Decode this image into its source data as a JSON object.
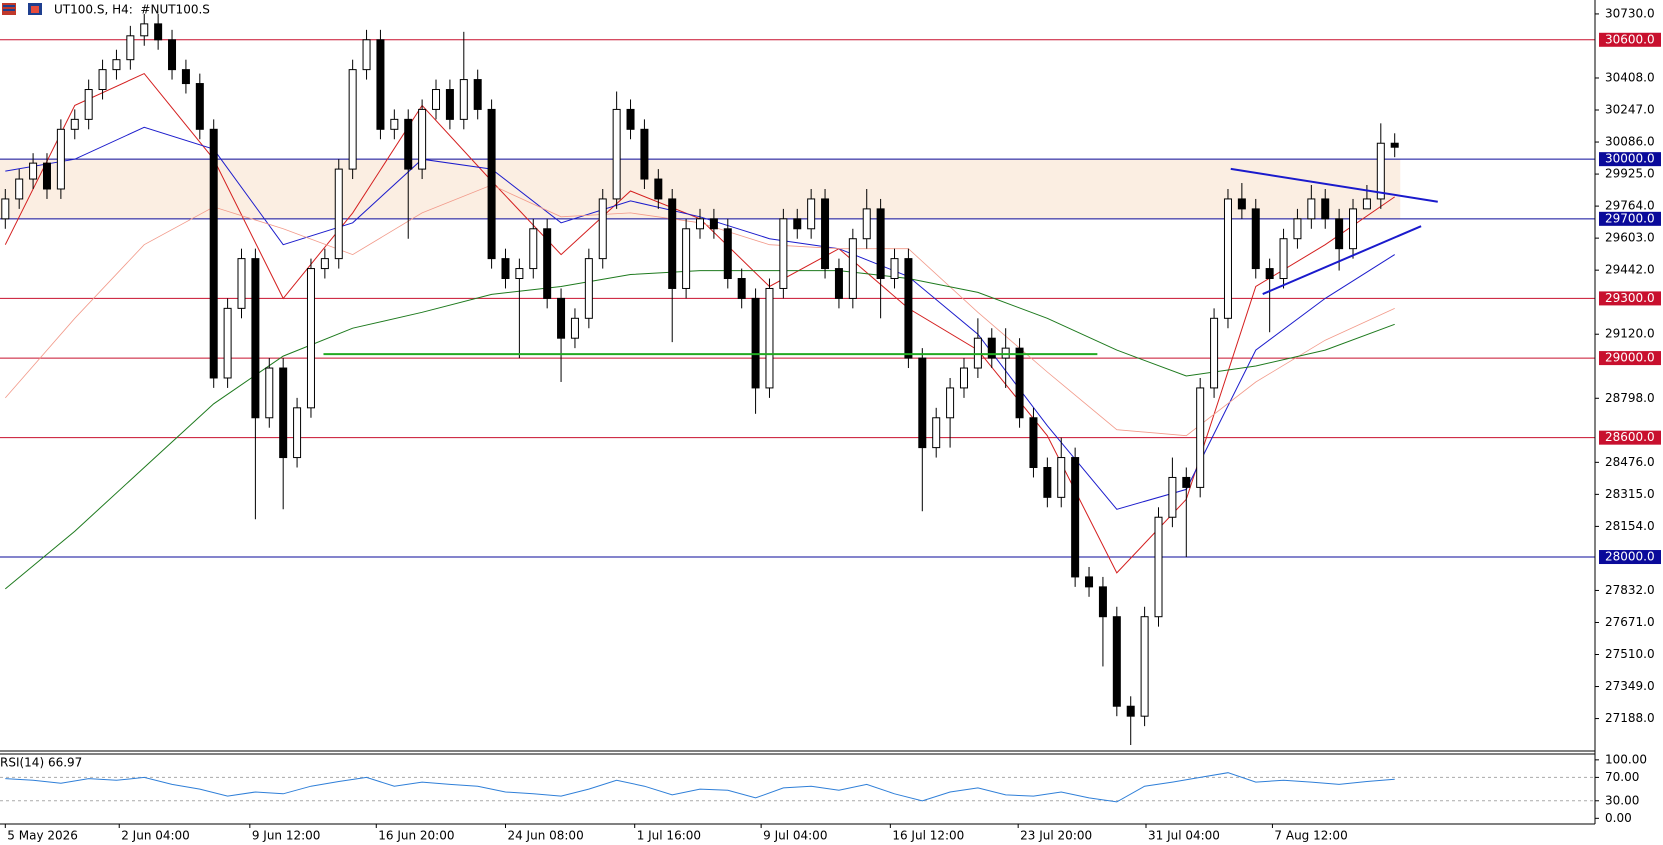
{
  "chart_data": {
    "type": "candlestick",
    "title": "UT100.S, H4:  #NUT100.S",
    "up_color": "#ffffff",
    "down_color": "#000000",
    "wick_color": "#000000",
    "grid": false,
    "open": [
      29700,
      29800,
      29900,
      29980,
      29850,
      30150,
      30200,
      30350,
      30450,
      30500,
      30620,
      30680,
      30600,
      30450,
      30380,
      30150,
      28900,
      29250,
      29500,
      28700,
      28950,
      28500,
      28750,
      29450,
      29500,
      29950,
      30450,
      30600,
      30150,
      30200,
      29950,
      30250,
      30350,
      30200,
      30400,
      30250,
      29500,
      29400,
      29450,
      29650,
      29300,
      29100,
      29200,
      29500,
      29800,
      30250,
      30150,
      29900,
      29800,
      29350,
      29650,
      29700,
      29650,
      29400,
      29300,
      28850,
      29350,
      29700,
      29650,
      29800,
      29450,
      29300,
      29600,
      29750,
      29400,
      29500,
      29000,
      28550,
      28700,
      28850,
      28950,
      29100,
      29000,
      29050,
      28700,
      28450,
      28300,
      28500,
      27900,
      27850,
      27700,
      27250,
      27200,
      27700,
      28200,
      28400,
      28350,
      28850,
      29200,
      29800,
      29750,
      29450,
      29400,
      29600,
      29700,
      29800,
      29700,
      29550,
      29750,
      29800,
      30080
    ],
    "high": [
      29850,
      29950,
      30030,
      30030,
      30200,
      30250,
      30400,
      30500,
      30550,
      30670,
      30730,
      30730,
      30650,
      30500,
      30430,
      30200,
      29300,
      29550,
      29550,
      29000,
      29000,
      28800,
      29500,
      29550,
      30000,
      30500,
      30650,
      30650,
      30250,
      30250,
      30300,
      30400,
      30400,
      30640,
      30450,
      30300,
      29550,
      29500,
      29700,
      29700,
      29350,
      29250,
      29550,
      29850,
      30340,
      30300,
      30200,
      29950,
      29850,
      29700,
      29750,
      29750,
      29700,
      29450,
      29350,
      29400,
      29750,
      29750,
      29850,
      29850,
      29500,
      29650,
      29850,
      29800,
      29550,
      29550,
      29050,
      28750,
      28900,
      29000,
      29200,
      29150,
      29150,
      29100,
      28750,
      28500,
      28600,
      28550,
      27950,
      27900,
      27750,
      27300,
      27750,
      28250,
      28500,
      28450,
      28900,
      29250,
      29850,
      29880,
      29800,
      29500,
      29650,
      29750,
      29870,
      29850,
      29750,
      29800,
      29870,
      30180,
      30130
    ],
    "low": [
      29650,
      29750,
      29850,
      29800,
      29800,
      30100,
      30150,
      30300,
      30400,
      30450,
      30570,
      30550,
      30400,
      30330,
      30100,
      28850,
      28850,
      29200,
      28190,
      28650,
      28240,
      28450,
      28700,
      29400,
      29450,
      29900,
      30400,
      30100,
      30100,
      29600,
      29900,
      30200,
      30150,
      30150,
      30200,
      29450,
      29350,
      29000,
      29400,
      29250,
      28880,
      29050,
      29150,
      29450,
      29750,
      30100,
      29850,
      29750,
      29080,
      29300,
      29600,
      29600,
      29350,
      29250,
      28720,
      28800,
      29300,
      29600,
      29600,
      29400,
      29250,
      29250,
      29550,
      29200,
      29350,
      28950,
      28230,
      28500,
      28550,
      28800,
      28900,
      28950,
      28850,
      28650,
      28400,
      28250,
      28250,
      27850,
      27800,
      27450,
      27200,
      27055,
      27150,
      27650,
      28150,
      28000,
      28300,
      28800,
      29150,
      29700,
      29400,
      29130,
      29350,
      29550,
      29650,
      29650,
      29440,
      29500,
      29750,
      29750,
      30010
    ],
    "close": [
      29800,
      29900,
      29980,
      29850,
      30150,
      30200,
      30350,
      30450,
      30500,
      30620,
      30680,
      30600,
      30450,
      30380,
      30150,
      28900,
      29250,
      29500,
      28700,
      28950,
      28500,
      28750,
      29450,
      29500,
      29950,
      30450,
      30600,
      30150,
      30200,
      29950,
      30250,
      30350,
      30200,
      30400,
      30250,
      29500,
      29400,
      29450,
      29650,
      29300,
      29100,
      29200,
      29500,
      29800,
      30250,
      30150,
      29900,
      29800,
      29350,
      29650,
      29700,
      29650,
      29400,
      29300,
      28850,
      29350,
      29700,
      29650,
      29800,
      29450,
      29300,
      29600,
      29750,
      29400,
      29500,
      29000,
      28550,
      28700,
      28850,
      28950,
      29100,
      29000,
      29050,
      28700,
      28450,
      28300,
      28500,
      27900,
      27850,
      27700,
      27250,
      27200,
      27700,
      28200,
      28400,
      28350,
      28850,
      29200,
      29800,
      29750,
      29450,
      29400,
      29600,
      29700,
      29800,
      29700,
      29550,
      29750,
      29800,
      30080,
      30060
    ],
    "ylim": [
      27030,
      30800
    ],
    "yticks": [
      {
        "value": 30730,
        "label": "30730.0"
      },
      {
        "value": 30408,
        "label": "30408.0"
      },
      {
        "value": 30247,
        "label": "30247.0"
      },
      {
        "value": 30086,
        "label": "30086.0"
      },
      {
        "value": 29925,
        "label": "29925.0"
      },
      {
        "value": 29764,
        "label": "29764.0"
      },
      {
        "value": 29603,
        "label": "29603.0"
      },
      {
        "value": 29442,
        "label": "29442.0"
      },
      {
        "value": 29120,
        "label": "29120.0"
      },
      {
        "value": 28798,
        "label": "28798.0"
      },
      {
        "value": 28476,
        "label": "28476.0"
      },
      {
        "value": 28315,
        "label": "28315.0"
      },
      {
        "value": 28154,
        "label": "28154.0"
      },
      {
        "value": 27832,
        "label": "27832.0"
      },
      {
        "value": 27671,
        "label": "27671.0"
      },
      {
        "value": 27510,
        "label": "27510.0"
      },
      {
        "value": 27349,
        "label": "27349.0"
      },
      {
        "value": 27188,
        "label": "27188.0"
      }
    ],
    "xticks": [
      {
        "value": 0,
        "label": "5 May 2026"
      },
      {
        "value": 8.2,
        "label": "2 Jun 04:00"
      },
      {
        "value": 17.6,
        "label": "9 Jun 12:00"
      },
      {
        "value": 26.7,
        "label": "16 Jun 20:00"
      },
      {
        "value": 36,
        "label": "24 Jun 08:00"
      },
      {
        "value": 45.3,
        "label": "1 Jul 16:00"
      },
      {
        "value": 54.4,
        "label": "9 Jul 04:00"
      },
      {
        "value": 63.7,
        "label": "16 Jul 12:00"
      },
      {
        "value": 72.9,
        "label": "23 Jul 20:00"
      },
      {
        "value": 82.1,
        "label": "31 Jul 04:00"
      },
      {
        "value": 91.2,
        "label": "7 Aug 12:00"
      }
    ],
    "levels": [
      {
        "value": 30600,
        "label": "30600.0",
        "color": "#c8102e"
      },
      {
        "value": 30000,
        "label": "30000.0",
        "color": "#0a0a9a"
      },
      {
        "value": 29700,
        "label": "29700.0",
        "color": "#0a0a9a"
      },
      {
        "value": 29300,
        "label": "29300.0",
        "color": "#c8102e"
      },
      {
        "value": 29000,
        "label": "29000.0",
        "color": "#c8102e"
      },
      {
        "value": 28600,
        "label": "28600.0",
        "color": "#c8102e"
      },
      {
        "value": 28000,
        "label": "28000.0",
        "color": "#0a0a9a"
      }
    ],
    "zone": {
      "x": [
        -0.4,
        100.4
      ],
      "y": [
        29700,
        30000
      ],
      "color": "#fbeee2"
    },
    "trendlines": [
      {
        "x": [
          88.2,
          103.1
        ],
        "y": [
          29951,
          29786
        ],
        "color": "#1a1acc"
      },
      {
        "x": [
          90.5,
          101.9
        ],
        "y": [
          29322,
          29663
        ],
        "color": "#1a1acc"
      },
      {
        "x": [
          22.9,
          78.6
        ],
        "y": [
          29020,
          29020
        ],
        "color": "#22aa22"
      }
    ],
    "moving_averages": {
      "x": [
        0,
        5,
        10,
        15,
        20,
        25,
        30,
        35,
        40,
        45,
        50,
        55,
        60,
        65,
        70,
        75,
        80,
        85,
        90,
        95,
        100
      ],
      "series": [
        {
          "color": "#d41f1f",
          "width": 1,
          "values": [
            29570,
            30270,
            30430,
            30000,
            29300,
            29730,
            30270,
            29890,
            29520,
            29840,
            29700,
            29360,
            29550,
            29250,
            29040,
            28610,
            27920,
            28290,
            29360,
            29570,
            29810
          ]
        },
        {
          "color": "#1c1ccc",
          "width": 1,
          "values": [
            29940,
            30000,
            30160,
            30050,
            29570,
            29680,
            30000,
            29950,
            29680,
            29790,
            29710,
            29600,
            29550,
            29410,
            29120,
            28660,
            28240,
            28340,
            29040,
            29300,
            29520
          ]
        },
        {
          "color": "#f29a8a",
          "width": 0.8,
          "values": [
            28800,
            29200,
            29570,
            29760,
            29650,
            29520,
            29730,
            29870,
            29710,
            29730,
            29680,
            29570,
            29550,
            29550,
            29230,
            28930,
            28640,
            28610,
            28880,
            29090,
            29250
          ]
        },
        {
          "color": "#1e7a1e",
          "width": 1,
          "values": [
            27840,
            28130,
            28450,
            28770,
            29010,
            29150,
            29230,
            29320,
            29360,
            29420,
            29440,
            29440,
            29440,
            29400,
            29330,
            29200,
            29040,
            28910,
            28960,
            29040,
            29170
          ]
        }
      ]
    },
    "rsi": {
      "label": "RSI(14) 66.97",
      "color": "#2f7fd8",
      "ylim": [
        -8,
        110
      ],
      "yticks": [
        {
          "value": 100,
          "label": "100.00"
        },
        {
          "value": 70,
          "label": "70.00"
        },
        {
          "value": 30,
          "label": "30.00"
        },
        {
          "value": 0,
          "label": "0.00"
        }
      ],
      "levels": [
        70,
        30
      ],
      "x": [
        0,
        2,
        4,
        6,
        8,
        10,
        12,
        14,
        16,
        18,
        20,
        22,
        24,
        26,
        28,
        30,
        32,
        34,
        36,
        38,
        40,
        42,
        44,
        46,
        48,
        50,
        52,
        54,
        56,
        58,
        60,
        62,
        64,
        66,
        68,
        70,
        72,
        74,
        76,
        78,
        80,
        82,
        84,
        86,
        88,
        90,
        92,
        94,
        96,
        98,
        100
      ],
      "values": [
        68,
        65,
        60,
        68,
        65,
        70,
        58,
        50,
        38,
        45,
        42,
        55,
        63,
        70,
        55,
        62,
        58,
        55,
        45,
        42,
        38,
        50,
        65,
        55,
        40,
        50,
        48,
        35,
        52,
        55,
        48,
        58,
        42,
        30,
        45,
        52,
        40,
        38,
        45,
        35,
        28,
        55,
        62,
        70,
        78,
        62,
        65,
        62,
        58,
        63,
        66.97
      ]
    }
  }
}
